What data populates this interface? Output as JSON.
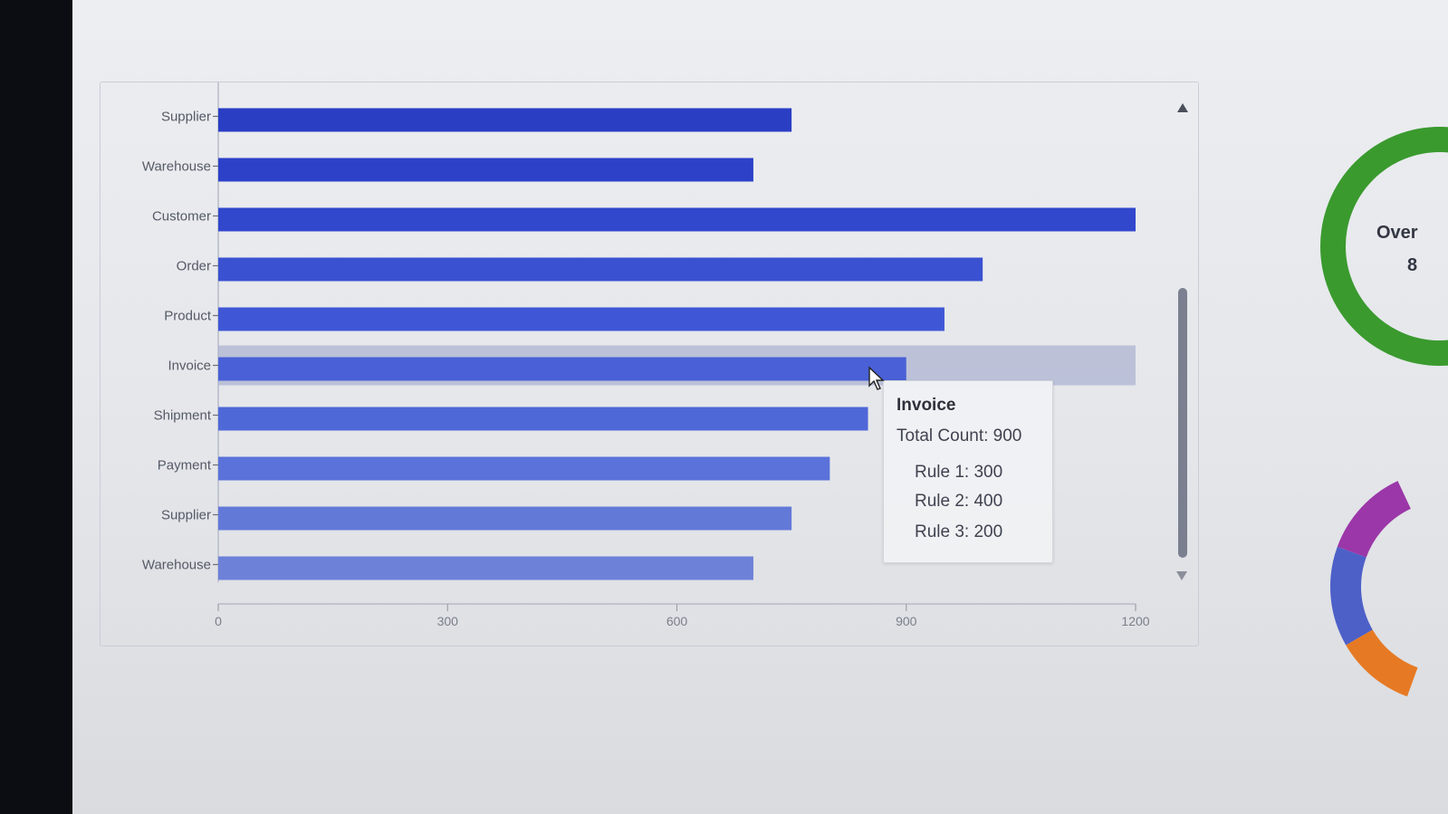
{
  "chart_data": {
    "type": "bar",
    "orientation": "horizontal",
    "categories": [
      "Supplier",
      "Warehouse",
      "Customer",
      "Order",
      "Product",
      "Invoice",
      "Shipment",
      "Payment",
      "Supplier",
      "Warehouse"
    ],
    "values": [
      750,
      700,
      1200,
      1000,
      950,
      900,
      850,
      800,
      750,
      700
    ],
    "xlim": [
      0,
      1200
    ],
    "xticks": [
      "0",
      "300",
      "600",
      "900",
      "1200"
    ],
    "highlighted_category": "Invoice",
    "grid": false,
    "bar_colors": [
      "#2a3ec4",
      "#2c41c8",
      "#3147cc",
      "#3a51d2",
      "#3f57d6",
      "#4960d6",
      "#4f68d8",
      "#5a72d9",
      "#6379d8",
      "#6d81d9"
    ],
    "hover_band_color": "#a9b1d0"
  },
  "tooltip": {
    "title": "Invoice",
    "total": "Total Count: 900",
    "rules": [
      "Rule 1: 300",
      "Rule 2: 400",
      "Rule 3: 200"
    ]
  },
  "side_widget": {
    "label": "Over",
    "value": "8",
    "top_ring_color": "#3a9a2e",
    "bottom_ring_colors": [
      "#9b37a8",
      "#4d60c8",
      "#e67a24"
    ]
  },
  "colors": {
    "axis": "#b7bcc9",
    "scroll_thumb": "#7b8090"
  }
}
